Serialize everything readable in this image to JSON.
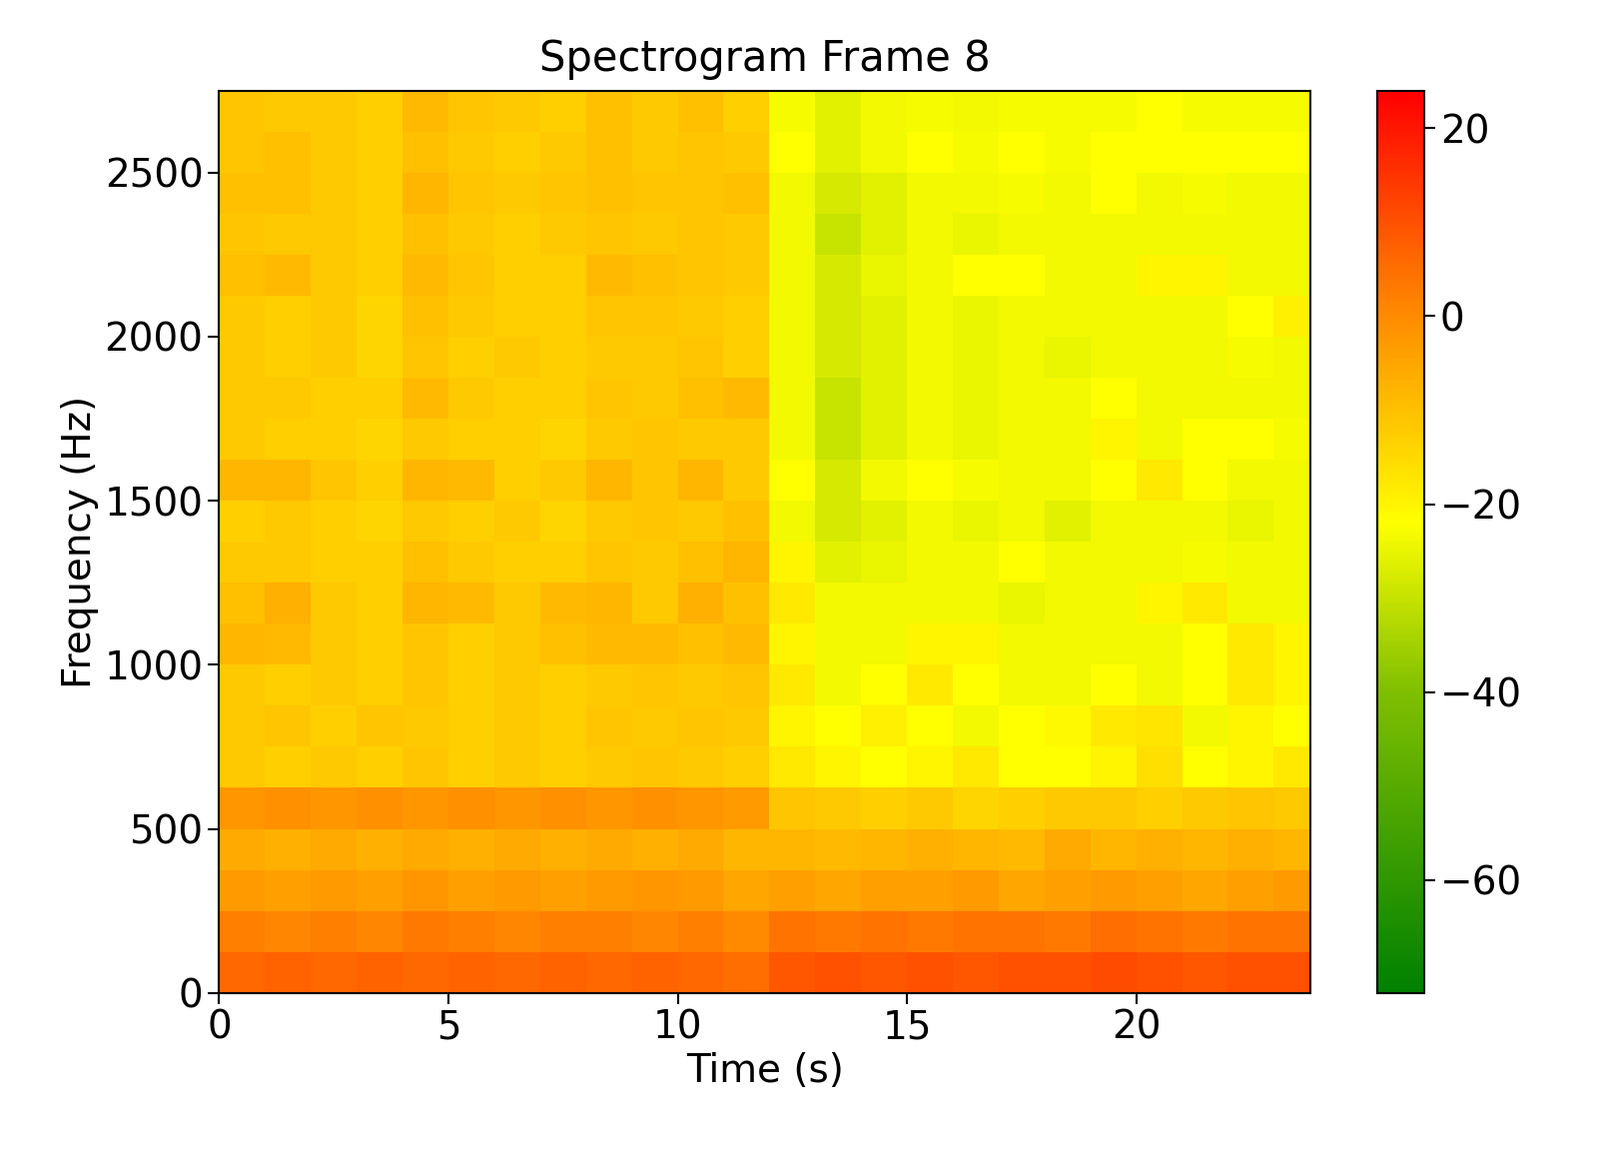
{
  "chart_data": {
    "type": "heatmap",
    "title": "Spectrogram Frame 8",
    "x_label": "Time (s)",
    "y_label": "Frequency (Hz)",
    "xlim": [
      0,
      23.8
    ],
    "ylim": [
      0,
      2750
    ],
    "xticks": [
      0,
      5,
      10,
      15,
      20
    ],
    "yticks": [
      0,
      500,
      1000,
      1500,
      2000,
      2500
    ],
    "x_edges": [
      0,
      1,
      2,
      3,
      4,
      5,
      6,
      7,
      8,
      9,
      10,
      11,
      12,
      13,
      14,
      15,
      16,
      17,
      18,
      19,
      20,
      21,
      22,
      23,
      23.8
    ],
    "y_edges": [
      0,
      125,
      250,
      375,
      500,
      625,
      750,
      875,
      1000,
      1125,
      1250,
      1375,
      1500,
      1625,
      1750,
      1875,
      2000,
      2125,
      2250,
      2375,
      2500,
      2625,
      2750
    ],
    "cells": [
      [
        6,
        7,
        6,
        7,
        6,
        7,
        6,
        7,
        6,
        7,
        6,
        5,
        9,
        10,
        9,
        10,
        9,
        10,
        10,
        11,
        10,
        9,
        10,
        10
      ],
      [
        2,
        1,
        2,
        1,
        3,
        2,
        1,
        2,
        2,
        1,
        2,
        0,
        4,
        3,
        4,
        3,
        4,
        4,
        3,
        5,
        4,
        3,
        4,
        4
      ],
      [
        -3,
        -4,
        -3,
        -4,
        -2,
        -4,
        -3,
        -4,
        -3,
        -2,
        -3,
        -5,
        -4,
        -5,
        -4,
        -4,
        -3,
        -5,
        -4,
        -3,
        -4,
        -5,
        -4,
        -3
      ],
      [
        -6,
        -7,
        -6,
        -7,
        -6,
        -7,
        -6,
        -7,
        -6,
        -7,
        -6,
        -8,
        -8,
        -9,
        -8,
        -7,
        -8,
        -9,
        -6,
        -8,
        -7,
        -8,
        -7,
        -8
      ],
      [
        -2,
        -1,
        -2,
        -1,
        -2,
        -1,
        -2,
        -1,
        -2,
        -1,
        -2,
        -3,
        -11,
        -12,
        -13,
        -12,
        -14,
        -13,
        -12,
        -12,
        -13,
        -12,
        -11,
        -12
      ],
      [
        -12,
        -13,
        -12,
        -13,
        -11,
        -13,
        -12,
        -13,
        -12,
        -11,
        -12,
        -13,
        -18,
        -20,
        -22,
        -20,
        -18,
        -22,
        -22,
        -20,
        -16,
        -22,
        -20,
        -18
      ],
      [
        -12,
        -11,
        -13,
        -11,
        -12,
        -13,
        -12,
        -13,
        -11,
        -12,
        -11,
        -12,
        -20,
        -22,
        -19,
        -22,
        -24,
        -22,
        -21,
        -18,
        -17,
        -24,
        -20,
        -22
      ],
      [
        -12,
        -13,
        -12,
        -13,
        -11,
        -13,
        -12,
        -13,
        -12,
        -11,
        -12,
        -11,
        -18,
        -24,
        -22,
        -18,
        -22,
        -24,
        -24,
        -22,
        -24,
        -22,
        -18,
        -20
      ],
      [
        -8,
        -9,
        -12,
        -13,
        -11,
        -13,
        -12,
        -10,
        -9,
        -9,
        -10,
        -9,
        -20,
        -24,
        -24,
        -20,
        -20,
        -24,
        -24,
        -24,
        -24,
        -22,
        -18,
        -20
      ],
      [
        -10,
        -7,
        -12,
        -13,
        -8,
        -9,
        -12,
        -9,
        -8,
        -12,
        -7,
        -10,
        -18,
        -24,
        -24,
        -24,
        -24,
        -25,
        -24,
        -24,
        -20,
        -18,
        -24,
        -24
      ],
      [
        -12,
        -12,
        -13,
        -13,
        -10,
        -12,
        -13,
        -13,
        -11,
        -12,
        -10,
        -8,
        -20,
        -26,
        -25,
        -24,
        -24,
        -22,
        -24,
        -24,
        -24,
        -23,
        -24,
        -24
      ],
      [
        -13,
        -12,
        -13,
        -14,
        -12,
        -13,
        -12,
        -14,
        -12,
        -11,
        -12,
        -10,
        -24,
        -28,
        -26,
        -24,
        -25,
        -24,
        -26,
        -24,
        -24,
        -24,
        -25,
        -24
      ],
      [
        -8,
        -8,
        -11,
        -13,
        -8,
        -9,
        -13,
        -12,
        -8,
        -11,
        -8,
        -12,
        -22,
        -28,
        -24,
        -22,
        -23,
        -24,
        -24,
        -22,
        -18,
        -22,
        -24,
        -24
      ],
      [
        -12,
        -13,
        -13,
        -14,
        -12,
        -13,
        -13,
        -14,
        -12,
        -11,
        -12,
        -12,
        -24,
        -30,
        -26,
        -24,
        -25,
        -24,
        -24,
        -20,
        -24,
        -22,
        -22,
        -23
      ],
      [
        -12,
        -12,
        -13,
        -13,
        -9,
        -12,
        -13,
        -13,
        -11,
        -12,
        -10,
        -9,
        -24,
        -30,
        -26,
        -24,
        -25,
        -24,
        -24,
        -22,
        -24,
        -24,
        -24,
        -24
      ],
      [
        -12,
        -13,
        -12,
        -14,
        -11,
        -13,
        -12,
        -13,
        -12,
        -12,
        -11,
        -13,
        -24,
        -28,
        -26,
        -24,
        -25,
        -24,
        -25,
        -24,
        -24,
        -24,
        -23,
        -24
      ],
      [
        -12,
        -13,
        -12,
        -14,
        -10,
        -12,
        -13,
        -13,
        -11,
        -11,
        -12,
        -13,
        -24,
        -28,
        -26,
        -24,
        -25,
        -24,
        -24,
        -24,
        -24,
        -24,
        -22,
        -19
      ],
      [
        -10,
        -9,
        -12,
        -13,
        -9,
        -11,
        -13,
        -13,
        -9,
        -10,
        -11,
        -12,
        -24,
        -28,
        -25,
        -24,
        -22,
        -22,
        -24,
        -24,
        -20,
        -20,
        -24,
        -24
      ],
      [
        -11,
        -12,
        -12,
        -13,
        -10,
        -12,
        -13,
        -12,
        -11,
        -12,
        -11,
        -12,
        -24,
        -30,
        -26,
        -24,
        -25,
        -24,
        -24,
        -24,
        -24,
        -24,
        -24,
        -24
      ],
      [
        -10,
        -10,
        -12,
        -13,
        -8,
        -11,
        -12,
        -11,
        -10,
        -11,
        -11,
        -10,
        -24,
        -28,
        -26,
        -24,
        -24,
        -23,
        -24,
        -22,
        -24,
        -23,
        -24,
        -24
      ],
      [
        -11,
        -10,
        -12,
        -13,
        -10,
        -12,
        -13,
        -12,
        -10,
        -12,
        -11,
        -12,
        -22,
        -26,
        -24,
        -22,
        -23,
        -22,
        -23,
        -22,
        -22,
        -22,
        -22,
        -22
      ],
      [
        -11,
        -12,
        -12,
        -13,
        -9,
        -11,
        -12,
        -13,
        -10,
        -12,
        -10,
        -13,
        -23,
        -26,
        -24,
        -23,
        -24,
        -23,
        -23,
        -23,
        -22,
        -23,
        -23,
        -23
      ]
    ],
    "colorbar_range": [
      -72,
      24
    ],
    "colorbar_ticks": [
      {
        "value": -60,
        "label": "−60"
      },
      {
        "value": -40,
        "label": "−40"
      },
      {
        "value": -20,
        "label": "−20"
      },
      0,
      20
    ]
  }
}
